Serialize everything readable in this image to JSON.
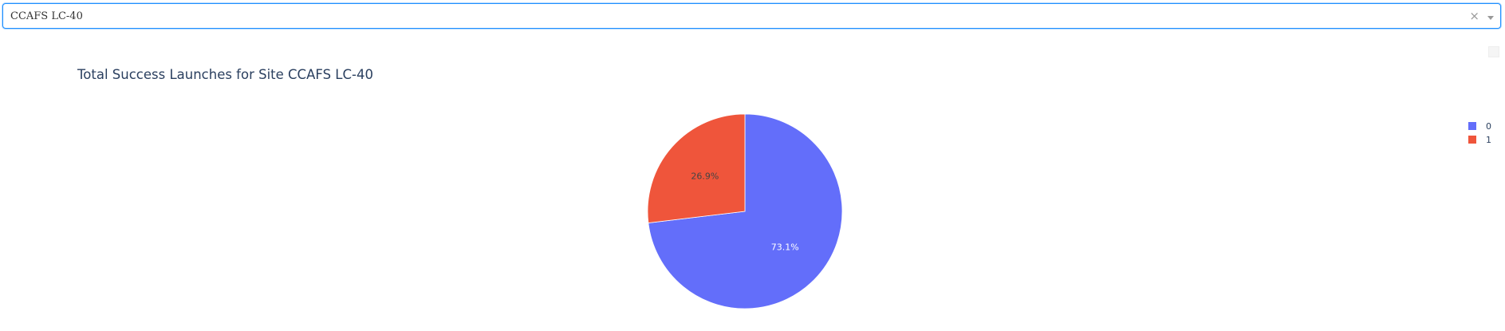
{
  "dropdown": {
    "value": "CCAFS LC-40",
    "clear_glyph": "×",
    "arrow_icon": "chevron-down-icon"
  },
  "chart_data": {
    "type": "pie",
    "title": "Total Success Launches for Site CCAFS LC-40",
    "categories": [
      "0",
      "1"
    ],
    "values": [
      73.1,
      26.9
    ],
    "labels": [
      "73.1%",
      "26.9%"
    ],
    "colors": [
      "#636efa",
      "#ef553b"
    ],
    "label_colors": [
      "#ffffff",
      "#444444"
    ],
    "legend": {
      "position": "top-right",
      "entries": [
        "0",
        "1"
      ]
    }
  }
}
